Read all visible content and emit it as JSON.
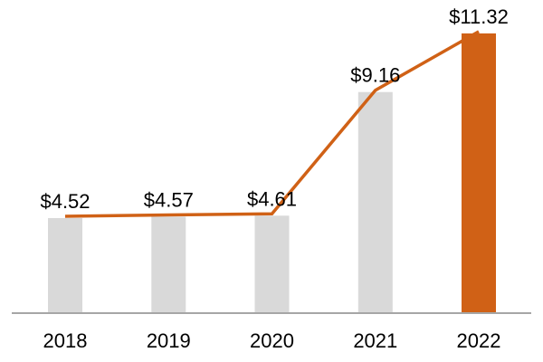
{
  "chart_data": {
    "type": "bar",
    "line_overlay": true,
    "title": "",
    "xlabel": "",
    "ylabel": "",
    "legend": "none",
    "grid": false,
    "categories": [
      "2018",
      "2019",
      "2020",
      "2021",
      "2022"
    ],
    "values": [
      4.52,
      4.57,
      4.61,
      9.16,
      11.32
    ],
    "data_labels": [
      "$4.52",
      "$4.57",
      "$4.61",
      "$9.16",
      "$11.32"
    ],
    "highlight_index": 4,
    "colors": {
      "bar_default": "#D9D9D9",
      "bar_highlight": "#D06116",
      "line": "#D06116",
      "axis_line": "#A6A6A6",
      "label_text": "#000000",
      "background": "#FFFFFF"
    }
  }
}
